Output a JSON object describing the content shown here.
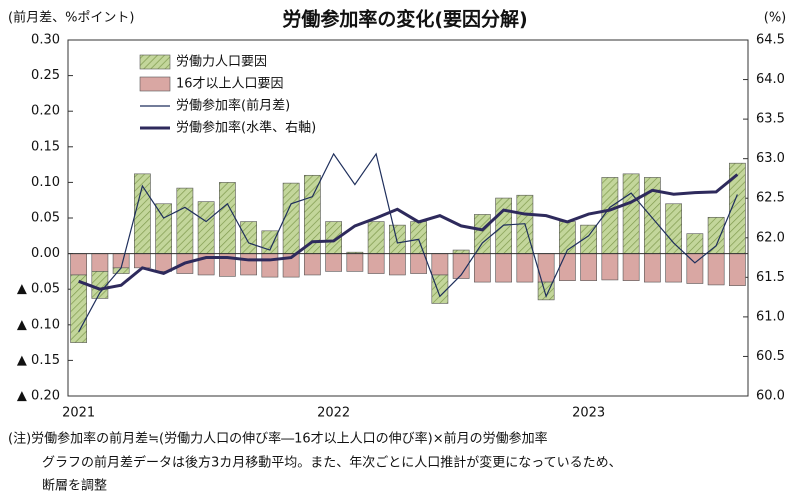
{
  "chart_data": {
    "type": "bar",
    "title": "労働参加率の変化(要因分解)",
    "y_label": "(前月差、%ポイント)",
    "y2_label": "(%)",
    "categories": [
      "2021",
      null,
      null,
      null,
      null,
      null,
      null,
      null,
      null,
      null,
      null,
      null,
      "2022",
      null,
      null,
      null,
      null,
      null,
      null,
      null,
      null,
      null,
      null,
      null,
      "2023",
      null,
      null,
      null,
      null,
      null,
      null,
      null
    ],
    "stack_order": [
      1,
      0
    ],
    "series": [
      {
        "name": "労働力人口要因",
        "type": "bar",
        "color": "#c3d69b",
        "hatch": "#7f9a4e",
        "values": [
          -0.095,
          -0.038,
          -0.008,
          0.112,
          0.07,
          0.092,
          0.073,
          0.1,
          0.045,
          0.032,
          0.099,
          0.11,
          0.045,
          0.002,
          0.045,
          0.04,
          0.045,
          -0.04,
          0.005,
          0.055,
          0.078,
          0.082,
          -0.025,
          0.045,
          0.04,
          0.107,
          0.112,
          0.107,
          0.07,
          0.028,
          0.051,
          0.127
        ]
      },
      {
        "name": "16才以上人口要因",
        "type": "bar",
        "color": "#d9a7a3",
        "values": [
          -0.03,
          -0.025,
          -0.02,
          -0.02,
          -0.025,
          -0.028,
          -0.03,
          -0.032,
          -0.03,
          -0.033,
          -0.033,
          -0.03,
          -0.025,
          -0.025,
          -0.028,
          -0.03,
          -0.028,
          -0.03,
          -0.035,
          -0.04,
          -0.04,
          -0.04,
          -0.04,
          -0.038,
          -0.038,
          -0.037,
          -0.038,
          -0.04,
          -0.04,
          -0.042,
          -0.044,
          -0.045
        ]
      },
      {
        "name": "労働参加率(前月差)",
        "type": "line",
        "color": "#1f2f5c",
        "line_width": 1.2,
        "values": [
          -0.11,
          -0.055,
          -0.02,
          0.095,
          0.05,
          0.065,
          0.045,
          0.07,
          0.015,
          0.005,
          0.07,
          0.08,
          0.14,
          0.097,
          0.14,
          0.015,
          0.02,
          -0.06,
          -0.03,
          0.015,
          0.04,
          0.042,
          -0.06,
          0.005,
          0.025,
          0.065,
          0.085,
          0.05,
          0.015,
          -0.013,
          0.011,
          0.083
        ]
      },
      {
        "name": "労働参加率(水準、右軸)",
        "type": "line",
        "axis": "y2",
        "color": "#2e2a5c",
        "line_width": 3,
        "values": [
          61.45,
          61.35,
          61.4,
          61.62,
          61.55,
          61.68,
          61.75,
          61.75,
          61.72,
          61.72,
          61.75,
          61.95,
          61.96,
          62.15,
          62.25,
          62.36,
          62.2,
          62.28,
          62.15,
          62.1,
          62.35,
          62.3,
          62.28,
          62.2,
          62.3,
          62.35,
          62.45,
          62.6,
          62.55,
          62.57,
          62.58,
          62.8
        ]
      }
    ],
    "ylim": [
      -0.2,
      0.3
    ],
    "yticks": [
      {
        "value": 0.3,
        "label": "0.30"
      },
      {
        "value": 0.25,
        "label": "0.25"
      },
      {
        "value": 0.2,
        "label": "0.20"
      },
      {
        "value": 0.15,
        "label": "0.15"
      },
      {
        "value": 0.1,
        "label": "0.10"
      },
      {
        "value": 0.05,
        "label": "0.05"
      },
      {
        "value": 0,
        "label": "0.00"
      },
      {
        "value": -0.05,
        "label": "▲ 0.05"
      },
      {
        "value": -0.1,
        "label": "▲ 0.10"
      },
      {
        "value": -0.15,
        "label": "▲ 0.15"
      },
      {
        "value": -0.2,
        "label": "▲ 0.20"
      }
    ],
    "y2lim": [
      60,
      64.5
    ],
    "y2ticks": [
      64.5,
      {
        "value": 64,
        "label": "64.0"
      },
      63.5,
      {
        "value": 63,
        "label": "63.0"
      },
      62.5,
      {
        "value": 62,
        "label": "62.0"
      },
      61.5,
      {
        "value": 61,
        "label": "61.0"
      },
      60.5,
      {
        "value": 60,
        "label": "60.0"
      }
    ],
    "notes": [
      "(注)労働参加率の前月差≒(労働力人口の伸び率―16才以上人口の伸び率)×前月の労働参加率",
      "グラフの前月差データは後方3カ月移動平均。また、年次ごとに人口推計が変更になっているため、",
      "断層を調整"
    ]
  }
}
